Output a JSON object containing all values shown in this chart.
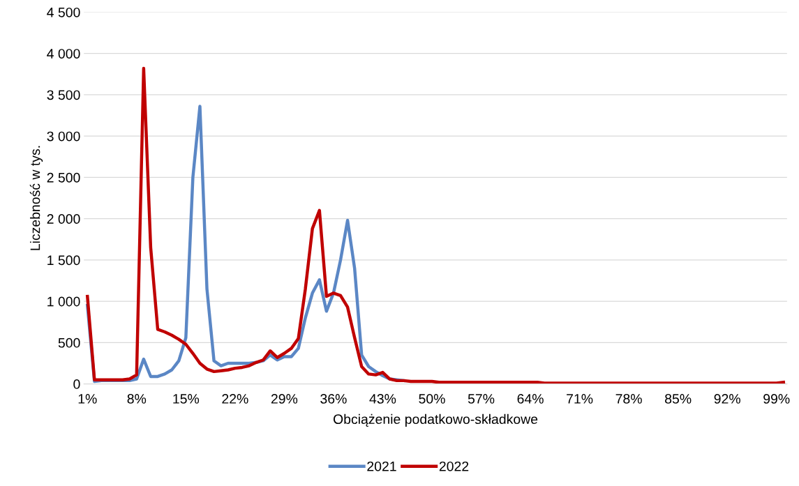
{
  "chart_data": {
    "type": "line",
    "xlabel": "Obciążenie podatkowo-składkowe",
    "ylabel": "Liczebność w tys.",
    "categories": [
      "1%",
      null,
      null,
      null,
      null,
      null,
      null,
      "8%",
      null,
      null,
      null,
      null,
      null,
      null,
      "15%",
      null,
      null,
      null,
      null,
      null,
      null,
      "22%",
      null,
      null,
      null,
      null,
      null,
      null,
      "29%",
      null,
      null,
      null,
      null,
      null,
      null,
      "36%",
      null,
      null,
      null,
      null,
      null,
      null,
      "43%",
      null,
      null,
      null,
      null,
      null,
      null,
      "50%",
      null,
      null,
      null,
      null,
      null,
      null,
      "57%",
      null,
      null,
      null,
      null,
      null,
      null,
      "64%",
      null,
      null,
      null,
      null,
      null,
      null,
      "71%",
      null,
      null,
      null,
      null,
      null,
      null,
      "78%",
      null,
      null,
      null,
      null,
      null,
      null,
      "85%",
      null,
      null,
      null,
      null,
      null,
      null,
      "92%",
      null,
      null,
      null,
      null,
      null,
      null,
      "99%",
      null
    ],
    "series": [
      {
        "name": "2021",
        "color": "#5b87c5",
        "values": [
          950,
          30,
          40,
          40,
          40,
          40,
          40,
          60,
          300,
          90,
          90,
          120,
          170,
          280,
          560,
          2500,
          3360,
          1150,
          280,
          220,
          250,
          250,
          250,
          250,
          260,
          280,
          350,
          290,
          330,
          330,
          430,
          800,
          1100,
          1260,
          880,
          1100,
          1500,
          1980,
          1400,
          350,
          210,
          150,
          100,
          60,
          50,
          40,
          null,
          null,
          null,
          null,
          null,
          null,
          null,
          null,
          null,
          null,
          null,
          null,
          null,
          null,
          null,
          null,
          null,
          null,
          null,
          null,
          null,
          null,
          null,
          null,
          null,
          null,
          null,
          null,
          null,
          null,
          null,
          null,
          null,
          null,
          null,
          null,
          null,
          null,
          null,
          null,
          null,
          null,
          null,
          null,
          null,
          null,
          null,
          null,
          null,
          null,
          null,
          null,
          null,
          null
        ]
      },
      {
        "name": "2022",
        "color": "#c00000",
        "values": [
          1060,
          50,
          50,
          50,
          50,
          50,
          60,
          110,
          3820,
          1650,
          660,
          630,
          590,
          540,
          480,
          370,
          250,
          180,
          150,
          160,
          170,
          190,
          200,
          220,
          260,
          290,
          400,
          320,
          370,
          430,
          550,
          1150,
          1880,
          2100,
          1060,
          1100,
          1070,
          930,
          560,
          210,
          120,
          110,
          140,
          60,
          40,
          40,
          30,
          30,
          30,
          30,
          20,
          20,
          20,
          20,
          20,
          20,
          20,
          20,
          20,
          20,
          20,
          20,
          20,
          20,
          20,
          10,
          10,
          10,
          10,
          10,
          10,
          10,
          10,
          10,
          10,
          10,
          10,
          10,
          10,
          10,
          10,
          10,
          10,
          10,
          10,
          10,
          10,
          10,
          10,
          10,
          10,
          10,
          10,
          10,
          10,
          10,
          10,
          10,
          10,
          20
        ]
      }
    ],
    "ylim": [
      0,
      4500
    ],
    "yticks": [
      0,
      500,
      {
        "value": 1000,
        "label": "1 000"
      },
      {
        "value": 1500,
        "label": "1 500"
      },
      {
        "value": 2000,
        "label": "2 000"
      },
      {
        "value": 2500,
        "label": "2 500"
      },
      {
        "value": 3000,
        "label": "3 000"
      },
      {
        "value": 3500,
        "label": "3 500"
      },
      {
        "value": 4000,
        "label": "4 000"
      },
      {
        "value": 4500,
        "label": "4 500"
      }
    ],
    "grid": "y",
    "legend": "bottom",
    "marker": "none",
    "line_style": "solid"
  }
}
